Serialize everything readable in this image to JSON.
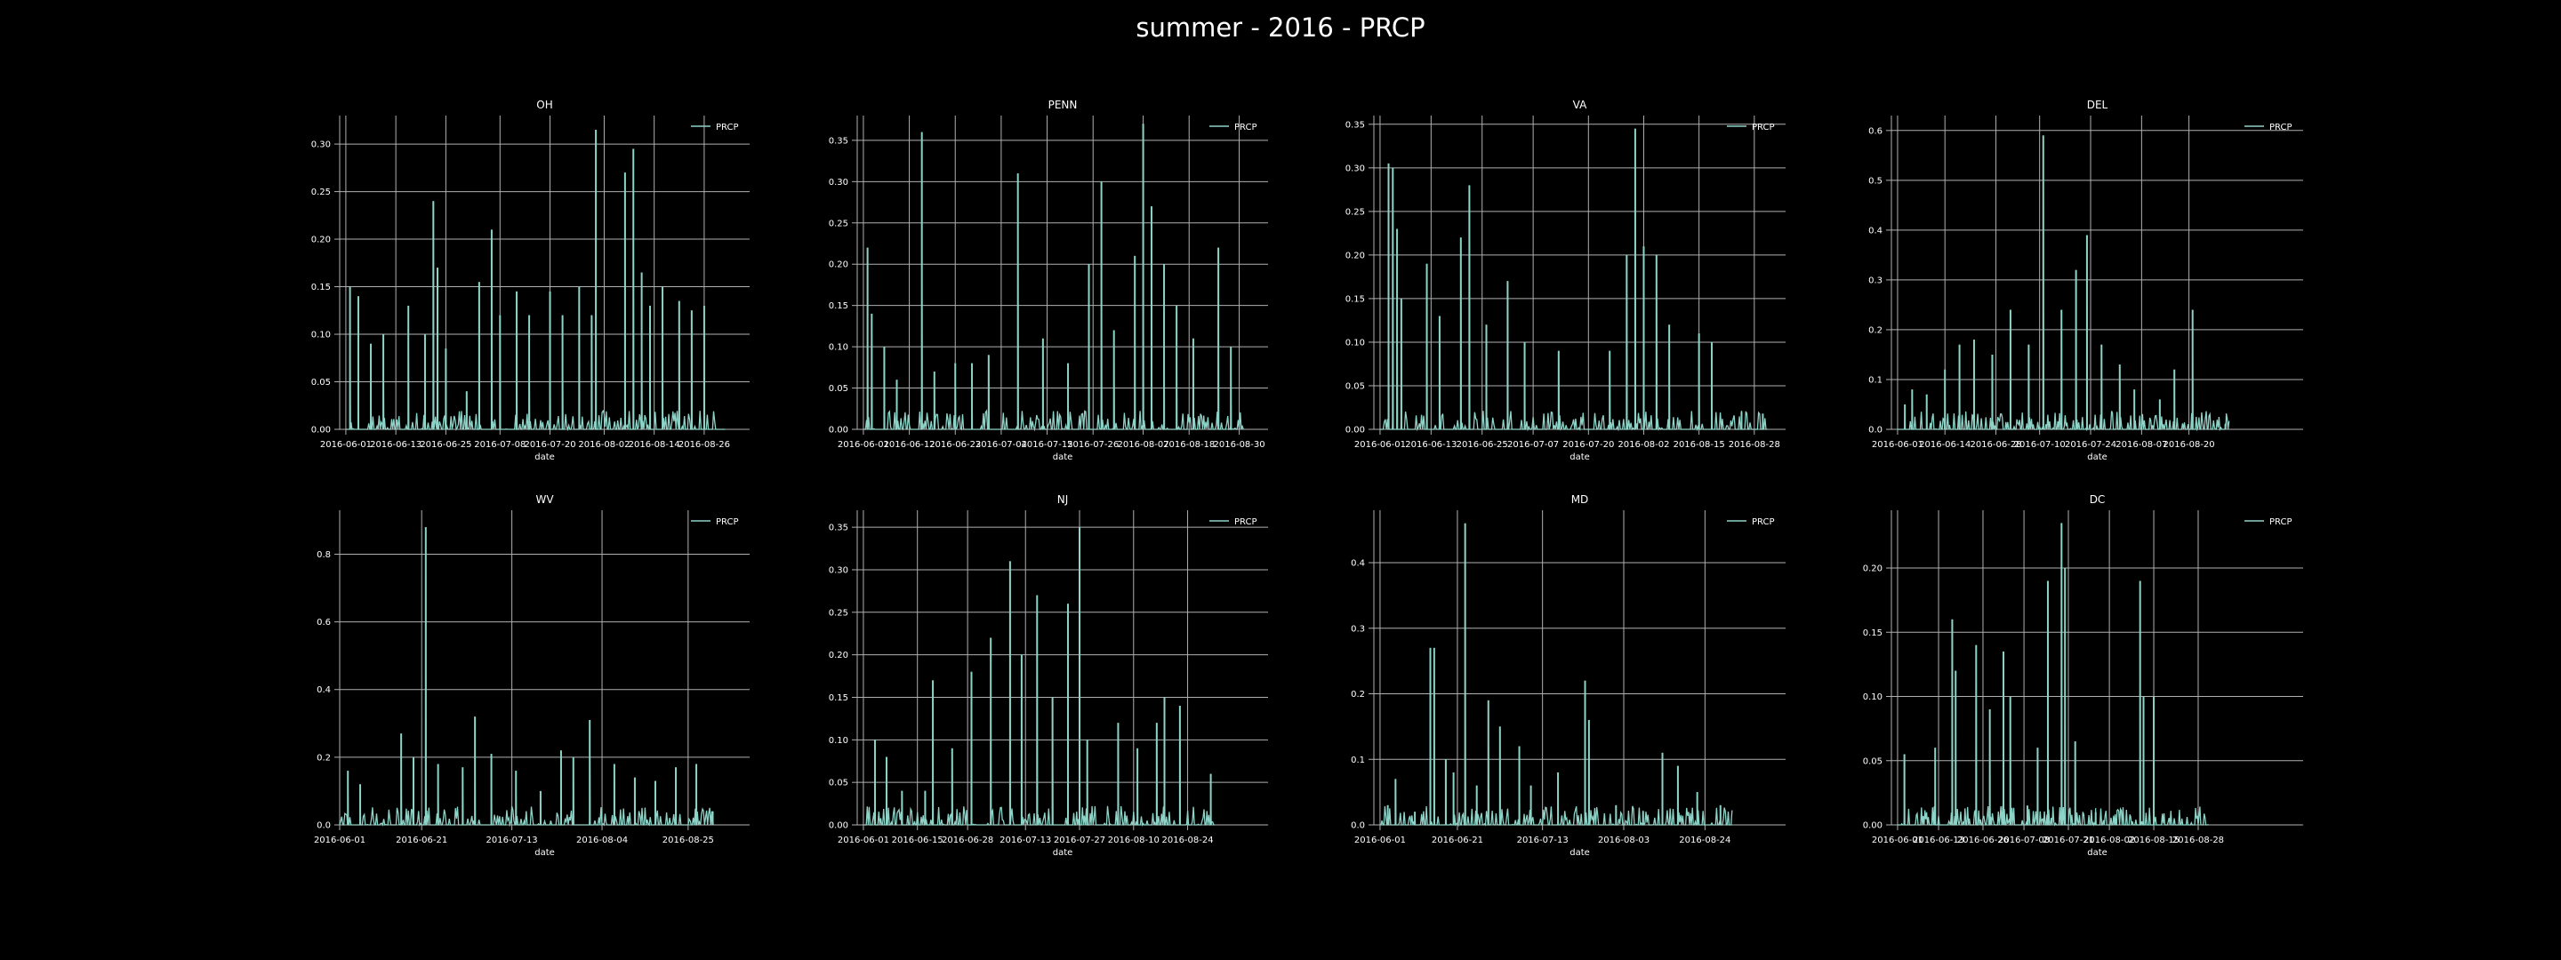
{
  "title": "summer - 2016 - PRCP",
  "colors": {
    "background": "#000000",
    "line": "#8dd3c7",
    "grid": "#b0b0b0",
    "text": "#ffffff"
  },
  "chart_data": [
    {
      "type": "line",
      "title": "OH",
      "xlabel": "date",
      "ylabel": "",
      "legend": "top-right",
      "grid": true,
      "x_start": "2016-06-01",
      "x_end": "2016-08-31",
      "xticks": [
        "2016-06-01",
        "2016-06-13",
        "2016-06-25",
        "2016-07-08",
        "2016-07-20",
        "2016-08-02",
        "2016-08-14",
        "2016-08-26"
      ],
      "ylim": [
        0,
        0.33
      ],
      "yticks": [
        "0.00",
        "0.05",
        "0.10",
        "0.15",
        "0.20",
        "0.25",
        "0.30"
      ],
      "series": [
        {
          "name": "PRCP",
          "peaks": [
            [
              "2016-06-02",
              0.15
            ],
            [
              "2016-06-04",
              0.14
            ],
            [
              "2016-06-07",
              0.09
            ],
            [
              "2016-06-10",
              0.1
            ],
            [
              "2016-06-16",
              0.13
            ],
            [
              "2016-06-20",
              0.1
            ],
            [
              "2016-06-22",
              0.24
            ],
            [
              "2016-06-23",
              0.17
            ],
            [
              "2016-06-25",
              0.085
            ],
            [
              "2016-06-30",
              0.04
            ],
            [
              "2016-07-03",
              0.155
            ],
            [
              "2016-07-06",
              0.21
            ],
            [
              "2016-07-08",
              0.12
            ],
            [
              "2016-07-12",
              0.145
            ],
            [
              "2016-07-15",
              0.12
            ],
            [
              "2016-07-20",
              0.145
            ],
            [
              "2016-07-23",
              0.12
            ],
            [
              "2016-07-27",
              0.15
            ],
            [
              "2016-07-30",
              0.12
            ],
            [
              "2016-07-31",
              0.315
            ],
            [
              "2016-08-07",
              0.27
            ],
            [
              "2016-08-09",
              0.295
            ],
            [
              "2016-08-11",
              0.165
            ],
            [
              "2016-08-13",
              0.13
            ],
            [
              "2016-08-16",
              0.15
            ],
            [
              "2016-08-20",
              0.135
            ],
            [
              "2016-08-23",
              0.125
            ],
            [
              "2016-08-26",
              0.13
            ]
          ]
        }
      ]
    },
    {
      "type": "line",
      "title": "PENN",
      "xlabel": "date",
      "ylabel": "",
      "legend": "top-right",
      "grid": true,
      "x_start": "2016-06-01",
      "x_end": "2016-08-31",
      "xticks": [
        "2016-06-01",
        "2016-06-12",
        "2016-06-23",
        "2016-07-04",
        "2016-07-15",
        "2016-07-26",
        "2016-08-07",
        "2016-08-18",
        "2016-08-30"
      ],
      "ylim": [
        0,
        0.38
      ],
      "yticks": [
        "0.00",
        "0.05",
        "0.10",
        "0.15",
        "0.20",
        "0.25",
        "0.30",
        "0.35"
      ],
      "series": [
        {
          "name": "PRCP",
          "peaks": [
            [
              "2016-06-02",
              0.22
            ],
            [
              "2016-06-03",
              0.14
            ],
            [
              "2016-06-06",
              0.1
            ],
            [
              "2016-06-09",
              0.06
            ],
            [
              "2016-06-15",
              0.36
            ],
            [
              "2016-06-18",
              0.07
            ],
            [
              "2016-06-23",
              0.08
            ],
            [
              "2016-06-27",
              0.08
            ],
            [
              "2016-07-01",
              0.09
            ],
            [
              "2016-07-08",
              0.31
            ],
            [
              "2016-07-14",
              0.11
            ],
            [
              "2016-07-20",
              0.08
            ],
            [
              "2016-07-25",
              0.2
            ],
            [
              "2016-07-28",
              0.3
            ],
            [
              "2016-07-31",
              0.12
            ],
            [
              "2016-08-05",
              0.21
            ],
            [
              "2016-08-07",
              0.37
            ],
            [
              "2016-08-09",
              0.27
            ],
            [
              "2016-08-12",
              0.2
            ],
            [
              "2016-08-15",
              0.15
            ],
            [
              "2016-08-19",
              0.11
            ],
            [
              "2016-08-25",
              0.22
            ],
            [
              "2016-08-28",
              0.1
            ]
          ]
        }
      ]
    },
    {
      "type": "line",
      "title": "VA",
      "xlabel": "date",
      "ylabel": "",
      "legend": "top-right",
      "grid": true,
      "x_start": "2016-06-01",
      "x_end": "2016-08-31",
      "xticks": [
        "2016-06-01",
        "2016-06-13",
        "2016-06-25",
        "2016-07-07",
        "2016-07-20",
        "2016-08-02",
        "2016-08-15",
        "2016-08-28"
      ],
      "ylim": [
        0,
        0.36
      ],
      "yticks": [
        "0.00",
        "0.05",
        "0.10",
        "0.15",
        "0.20",
        "0.25",
        "0.30",
        "0.35"
      ],
      "series": [
        {
          "name": "PRCP",
          "peaks": [
            [
              "2016-06-03",
              0.305
            ],
            [
              "2016-06-04",
              0.3
            ],
            [
              "2016-06-05",
              0.23
            ],
            [
              "2016-06-06",
              0.15
            ],
            [
              "2016-06-12",
              0.19
            ],
            [
              "2016-06-15",
              0.13
            ],
            [
              "2016-06-20",
              0.22
            ],
            [
              "2016-06-22",
              0.28
            ],
            [
              "2016-06-26",
              0.12
            ],
            [
              "2016-07-01",
              0.17
            ],
            [
              "2016-07-05",
              0.1
            ],
            [
              "2016-07-13",
              0.09
            ],
            [
              "2016-07-25",
              0.09
            ],
            [
              "2016-07-29",
              0.2
            ],
            [
              "2016-07-31",
              0.345
            ],
            [
              "2016-08-02",
              0.21
            ],
            [
              "2016-08-05",
              0.2
            ],
            [
              "2016-08-08",
              0.12
            ],
            [
              "2016-08-15",
              0.11
            ],
            [
              "2016-08-18",
              0.1
            ],
            [
              "2016-08-25",
              0.02
            ],
            [
              "2016-08-30",
              0.018
            ]
          ]
        }
      ]
    },
    {
      "type": "line",
      "title": "DEL",
      "xlabel": "date",
      "ylabel": "",
      "legend": "top-right",
      "grid": true,
      "x_start": "2016-06-01",
      "x_end": "2016-08-31",
      "xticks": [
        "2016-06-01",
        "2016-06-14",
        "2016-06-28",
        "2016-07-10",
        "2016-07-24",
        "2016-08-07",
        "2016-08-20"
      ],
      "ylim": [
        0,
        0.63
      ],
      "yticks": [
        "0.0",
        "0.1",
        "0.2",
        "0.3",
        "0.4",
        "0.5",
        "0.6"
      ],
      "series": [
        {
          "name": "PRCP",
          "peaks": [
            [
              "2016-06-03",
              0.05
            ],
            [
              "2016-06-05",
              0.08
            ],
            [
              "2016-06-09",
              0.07
            ],
            [
              "2016-06-14",
              0.12
            ],
            [
              "2016-06-18",
              0.17
            ],
            [
              "2016-06-22",
              0.18
            ],
            [
              "2016-06-27",
              0.15
            ],
            [
              "2016-07-02",
              0.24
            ],
            [
              "2016-07-07",
              0.17
            ],
            [
              "2016-07-11",
              0.59
            ],
            [
              "2016-07-16",
              0.24
            ],
            [
              "2016-07-20",
              0.32
            ],
            [
              "2016-07-23",
              0.39
            ],
            [
              "2016-07-27",
              0.17
            ],
            [
              "2016-08-01",
              0.13
            ],
            [
              "2016-08-05",
              0.08
            ],
            [
              "2016-08-12",
              0.06
            ],
            [
              "2016-08-16",
              0.12
            ],
            [
              "2016-08-21",
              0.24
            ],
            [
              "2016-08-30",
              0.01
            ]
          ]
        }
      ]
    },
    {
      "type": "line",
      "title": "WV",
      "xlabel": "date",
      "ylabel": "",
      "legend": "top-right",
      "grid": true,
      "x_start": "2016-06-01",
      "x_end": "2016-08-31",
      "xticks": [
        "2016-06-01",
        "2016-06-21",
        "2016-07-13",
        "2016-08-04",
        "2016-08-25"
      ],
      "ylim": [
        0,
        0.93
      ],
      "yticks": [
        "0.0",
        "0.2",
        "0.4",
        "0.6",
        "0.8"
      ],
      "series": [
        {
          "name": "PRCP",
          "peaks": [
            [
              "2016-06-03",
              0.16
            ],
            [
              "2016-06-06",
              0.12
            ],
            [
              "2016-06-16",
              0.27
            ],
            [
              "2016-06-19",
              0.2
            ],
            [
              "2016-06-22",
              0.88
            ],
            [
              "2016-06-25",
              0.18
            ],
            [
              "2016-07-01",
              0.17
            ],
            [
              "2016-07-04",
              0.32
            ],
            [
              "2016-07-08",
              0.21
            ],
            [
              "2016-07-14",
              0.16
            ],
            [
              "2016-07-20",
              0.1
            ],
            [
              "2016-07-25",
              0.22
            ],
            [
              "2016-07-28",
              0.2
            ],
            [
              "2016-08-01",
              0.31
            ],
            [
              "2016-08-07",
              0.18
            ],
            [
              "2016-08-12",
              0.14
            ],
            [
              "2016-08-17",
              0.13
            ],
            [
              "2016-08-22",
              0.17
            ],
            [
              "2016-08-27",
              0.18
            ],
            [
              "2016-08-31",
              0.04
            ]
          ]
        }
      ]
    },
    {
      "type": "line",
      "title": "NJ",
      "xlabel": "date",
      "ylabel": "",
      "legend": "top-right",
      "grid": true,
      "x_start": "2016-06-01",
      "x_end": "2016-08-31",
      "xticks": [
        "2016-06-01",
        "2016-06-15",
        "2016-06-28",
        "2016-07-13",
        "2016-07-27",
        "2016-08-10",
        "2016-08-24"
      ],
      "ylim": [
        0,
        0.37
      ],
      "yticks": [
        "0.00",
        "0.05",
        "0.10",
        "0.15",
        "0.20",
        "0.25",
        "0.30",
        "0.35"
      ],
      "series": [
        {
          "name": "PRCP",
          "peaks": [
            [
              "2016-06-04",
              0.1
            ],
            [
              "2016-06-07",
              0.08
            ],
            [
              "2016-06-11",
              0.04
            ],
            [
              "2016-06-17",
              0.04
            ],
            [
              "2016-06-19",
              0.17
            ],
            [
              "2016-06-24",
              0.09
            ],
            [
              "2016-06-29",
              0.18
            ],
            [
              "2016-07-04",
              0.22
            ],
            [
              "2016-07-09",
              0.31
            ],
            [
              "2016-07-12",
              0.2
            ],
            [
              "2016-07-16",
              0.27
            ],
            [
              "2016-07-20",
              0.15
            ],
            [
              "2016-07-24",
              0.26
            ],
            [
              "2016-07-27",
              0.35
            ],
            [
              "2016-07-29",
              0.1
            ],
            [
              "2016-08-06",
              0.12
            ],
            [
              "2016-08-11",
              0.09
            ],
            [
              "2016-08-16",
              0.12
            ],
            [
              "2016-08-18",
              0.15
            ],
            [
              "2016-08-22",
              0.14
            ],
            [
              "2016-08-30",
              0.06
            ]
          ]
        }
      ]
    },
    {
      "type": "line",
      "title": "MD",
      "xlabel": "date",
      "ylabel": "",
      "legend": "top-right",
      "grid": true,
      "x_start": "2016-06-01",
      "x_end": "2016-08-31",
      "xticks": [
        "2016-06-01",
        "2016-06-21",
        "2016-07-13",
        "2016-08-03",
        "2016-08-24"
      ],
      "ylim": [
        0,
        0.48
      ],
      "yticks": [
        "0.0",
        "0.1",
        "0.2",
        "0.3",
        "0.4"
      ],
      "series": [
        {
          "name": "PRCP",
          "peaks": [
            [
              "2016-06-03",
              0.03
            ],
            [
              "2016-06-05",
              0.07
            ],
            [
              "2016-06-10",
              0.02
            ],
            [
              "2016-06-14",
              0.27
            ],
            [
              "2016-06-15",
              0.27
            ],
            [
              "2016-06-18",
              0.1
            ],
            [
              "2016-06-20",
              0.08
            ],
            [
              "2016-06-23",
              0.46
            ],
            [
              "2016-06-26",
              0.06
            ],
            [
              "2016-06-29",
              0.19
            ],
            [
              "2016-07-02",
              0.15
            ],
            [
              "2016-07-07",
              0.12
            ],
            [
              "2016-07-10",
              0.06
            ],
            [
              "2016-07-17",
              0.08
            ],
            [
              "2016-07-24",
              0.22
            ],
            [
              "2016-07-25",
              0.16
            ],
            [
              "2016-08-01",
              0.03
            ],
            [
              "2016-08-08",
              0.02
            ],
            [
              "2016-08-13",
              0.11
            ],
            [
              "2016-08-17",
              0.09
            ],
            [
              "2016-08-22",
              0.05
            ],
            [
              "2016-08-28",
              0.03
            ]
          ]
        }
      ]
    },
    {
      "type": "line",
      "title": "DC",
      "xlabel": "date",
      "ylabel": "",
      "legend": "top-right",
      "grid": true,
      "x_start": "2016-06-01",
      "x_end": "2016-08-31",
      "xticks": [
        "2016-06-01",
        "2016-06-13",
        "2016-06-26",
        "2016-07-08",
        "2016-07-21",
        "2016-08-02",
        "2016-08-15",
        "2016-08-28"
      ],
      "ylim": [
        0,
        0.245
      ],
      "yticks": [
        "0.00",
        "0.05",
        "0.10",
        "0.15",
        "0.20"
      ],
      "series": [
        {
          "name": "PRCP",
          "peaks": [
            [
              "2016-06-03",
              0.055
            ],
            [
              "2016-06-12",
              0.06
            ],
            [
              "2016-06-17",
              0.16
            ],
            [
              "2016-06-18",
              0.12
            ],
            [
              "2016-06-24",
              0.14
            ],
            [
              "2016-06-28",
              0.09
            ],
            [
              "2016-07-02",
              0.135
            ],
            [
              "2016-07-04",
              0.1
            ],
            [
              "2016-07-09",
              0.015
            ],
            [
              "2016-07-12",
              0.06
            ],
            [
              "2016-07-15",
              0.19
            ],
            [
              "2016-07-19",
              0.235
            ],
            [
              "2016-07-20",
              0.2
            ],
            [
              "2016-07-23",
              0.065
            ],
            [
              "2016-07-29",
              0.01
            ],
            [
              "2016-08-04",
              0.005
            ],
            [
              "2016-08-11",
              0.19
            ],
            [
              "2016-08-12",
              0.1
            ],
            [
              "2016-08-15",
              0.1
            ]
          ]
        }
      ]
    }
  ]
}
